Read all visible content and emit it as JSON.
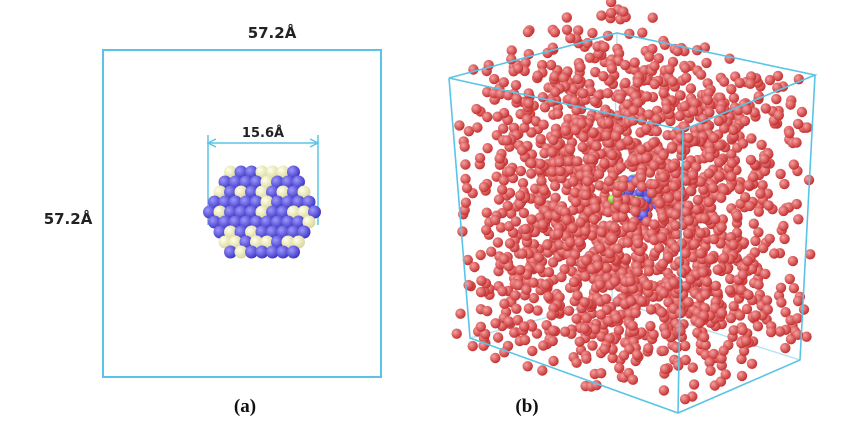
{
  "panel_a": {
    "width_label": "57.2Å",
    "height_label": "57.2Å",
    "diameter_label": "15.6Å",
    "caption": "(a)"
  },
  "panel_b": {
    "caption": "(b)"
  }
}
